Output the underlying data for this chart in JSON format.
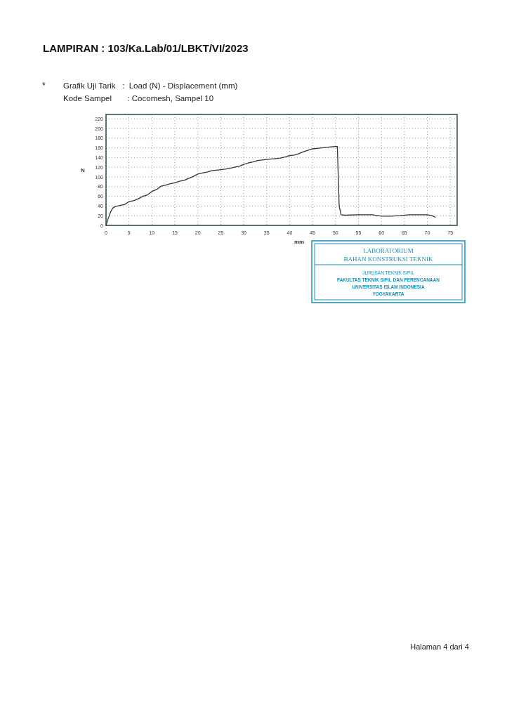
{
  "chart_data": {
    "type": "line",
    "title": "LAMPIRAN : 103/Ka.Lab/01/LBKT/VI/2023",
    "subtitle": "Grafik Uji Tarik   :  Load (N) - Displacement (mm)",
    "xlabel": "mm",
    "ylabel": "N",
    "annotations": [
      "*",
      "Kode Sampel       : Cocomesh, Sampel 10",
      "LABORATORIUM",
      "BAHAN KONSTRUKSI TEKNIK",
      "JURUSAN TEKNIK SIPIL",
      "FAKULTAS TEKNIK SIPIL DAN PERENCANAAN",
      "UNIVERSITAS ISLAM INDONESIA",
      "YOGYAKARTA",
      "Halaman 4 dari 4"
    ],
    "xlim": [
      0,
      76.5
    ],
    "xticks": [
      0,
      5,
      10,
      15,
      20,
      25,
      30,
      35,
      40,
      45,
      50,
      55,
      60,
      65,
      70,
      75
    ],
    "ylim": [
      0,
      229
    ],
    "yticks": [
      0,
      20,
      40,
      60,
      80,
      100,
      120,
      140,
      160,
      180,
      200,
      220
    ],
    "grid": true,
    "marker": "none",
    "line_style": "solid",
    "series": [
      {
        "color": "#333333",
        "x": [
          0,
          0.5,
          1,
          1.5,
          2,
          3,
          4,
          5,
          6,
          7,
          8,
          9,
          10,
          11,
          12,
          13,
          14,
          15,
          16,
          17,
          18,
          19,
          20,
          21,
          22,
          23,
          24,
          25,
          26,
          27,
          28,
          29,
          30,
          31,
          32,
          33,
          34,
          35,
          36,
          37,
          38,
          39,
          40,
          41,
          42,
          43,
          44,
          45,
          46,
          47,
          48,
          49,
          50,
          50.4,
          50.6,
          50.8,
          51.2,
          52,
          55,
          58,
          60,
          62,
          64,
          66,
          68,
          70,
          71,
          71.8
        ],
        "values": [
          0,
          15,
          28,
          36,
          39,
          41,
          43,
          49,
          51,
          55,
          60,
          63,
          70,
          74,
          81,
          83,
          86,
          88,
          91,
          93,
          97,
          101,
          106,
          108,
          110,
          113,
          114,
          115,
          116,
          118,
          120,
          122,
          126,
          129,
          131,
          134,
          135,
          136,
          137,
          138,
          139,
          141,
          144,
          145,
          148,
          152,
          155,
          158,
          159,
          160,
          161,
          162,
          163,
          163,
          100,
          40,
          22,
          21,
          22,
          22,
          19,
          19,
          20,
          22,
          22,
          22,
          20,
          17
        ]
      }
    ]
  }
}
